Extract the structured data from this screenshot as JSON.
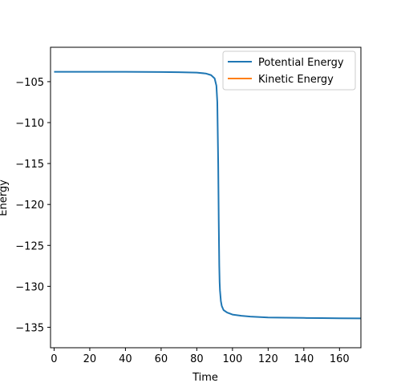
{
  "chart_data": {
    "type": "line",
    "xlabel": "Time",
    "ylabel": "Energy",
    "xlim": [
      -2,
      172
    ],
    "ylim": [
      -137.5,
      -100.8
    ],
    "xticks": [
      0,
      20,
      40,
      60,
      80,
      100,
      120,
      140,
      160
    ],
    "yticks": [
      -105,
      -110,
      -115,
      -120,
      -125,
      -130,
      -135
    ],
    "xtick_labels": [
      "0",
      "20",
      "40",
      "60",
      "80",
      "100",
      "120",
      "140",
      "160"
    ],
    "ytick_labels": [
      "−105",
      "−110",
      "−115",
      "−120",
      "−125",
      "−130",
      "−135"
    ],
    "grid": false,
    "legend": "top-right",
    "series": [
      {
        "name": "Potential Energy",
        "color": "#1f77b4",
        "x": [
          0,
          20,
          40,
          60,
          70,
          80,
          85,
          88,
          90,
          91,
          91.5,
          92,
          92.3,
          92.6,
          92.8,
          93,
          93.5,
          94,
          95,
          97,
          100,
          105,
          110,
          120,
          130,
          140,
          150,
          160,
          172
        ],
        "y": [
          -103.8,
          -103.8,
          -103.8,
          -103.82,
          -103.85,
          -103.9,
          -104.0,
          -104.2,
          -104.6,
          -105.5,
          -107.5,
          -115,
          -122,
          -127.5,
          -129.5,
          -130.5,
          -131.8,
          -132.4,
          -132.9,
          -133.2,
          -133.45,
          -133.6,
          -133.7,
          -133.8,
          -133.83,
          -133.86,
          -133.88,
          -133.9,
          -133.92
        ]
      },
      {
        "name": "Kinetic Energy",
        "color": "#ff7f0e",
        "x": [],
        "y": []
      }
    ]
  }
}
